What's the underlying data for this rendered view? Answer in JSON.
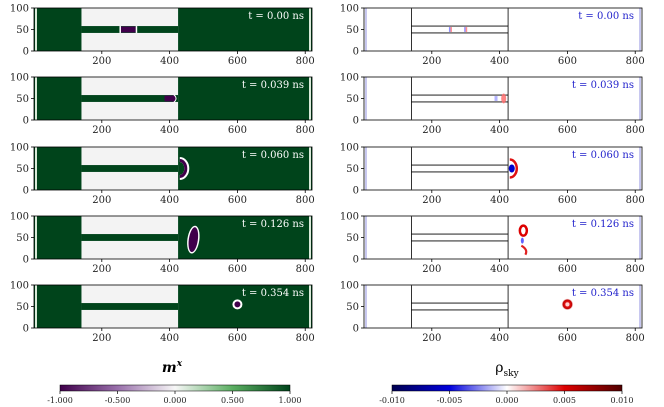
{
  "chart_data": {
    "type": "heatmap",
    "description_free": true,
    "xlim": [
      0,
      820
    ],
    "ylim": [
      0,
      100
    ],
    "x_ticks": [
      "200",
      "400",
      "600",
      "800"
    ],
    "x_tick_values": [
      200,
      400,
      600,
      800
    ],
    "y_ticks": [
      "0",
      "50",
      "100"
    ],
    "y_tick_values": [
      0,
      50,
      100
    ],
    "channel": {
      "x0": 140,
      "x1": 425,
      "y_lo": 42,
      "y_hi": 58
    },
    "times": [
      "t = 0.00 ns",
      "t = 0.039 ns",
      "t = 0.060 ns",
      "t = 0.126 ns",
      "t = 0.354 ns"
    ],
    "skyrmion_positions": [
      {
        "x": 275,
        "y": 50,
        "shape": "bar"
      },
      {
        "x": 395,
        "y": 50,
        "shape": "bar"
      },
      {
        "x": 430,
        "y": 50,
        "shape": "arc"
      },
      {
        "x": 470,
        "y": 45,
        "shape": "elongated"
      },
      {
        "x": 600,
        "y": 55,
        "shape": "dot"
      }
    ],
    "left_panels": {
      "quantity": "m",
      "quantity_superscript": "x",
      "colorbar": {
        "min": -1.0,
        "max": 1.0,
        "ticks": [
          "-1.000",
          "-0.500",
          "0.000",
          "0.500",
          "1.000"
        ],
        "tick_values": [
          -1.0,
          -0.5,
          0.0,
          0.5,
          1.0
        ],
        "colors": [
          "#40004b",
          "#9970ab",
          "#f7f7f7",
          "#5aae61",
          "#00441b"
        ]
      }
    },
    "right_panels": {
      "quantity": "ρ",
      "quantity_subscript": "sky",
      "colorbar": {
        "min": -0.01,
        "max": 0.01,
        "ticks": [
          "-0.010",
          "-0.005",
          "0.000",
          "0.005",
          "0.010"
        ],
        "tick_values": [
          -0.01,
          -0.005,
          0.0,
          0.005,
          0.01
        ],
        "colors": [
          "#000050",
          "#0000dd",
          "#ffffff",
          "#dd0000",
          "#500000"
        ]
      }
    }
  }
}
